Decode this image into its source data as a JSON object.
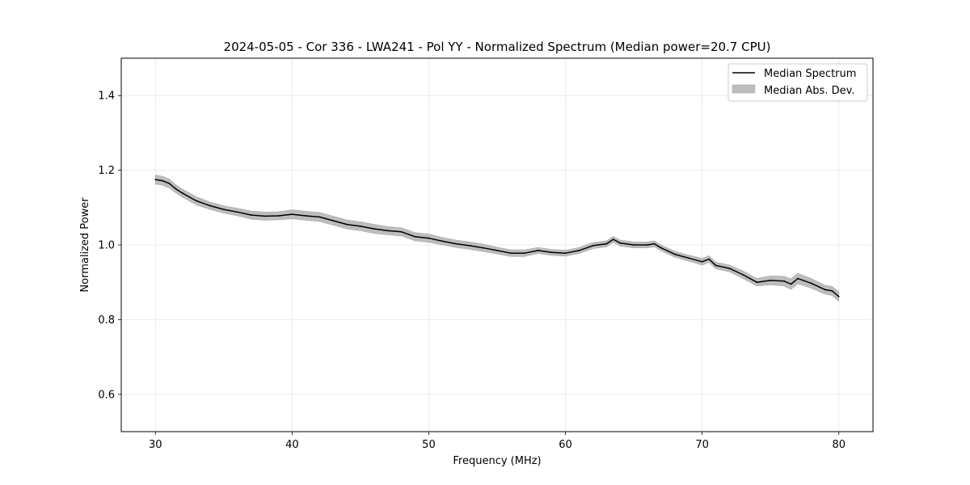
{
  "chart_data": {
    "type": "line",
    "title": "2024-05-05 - Cor 336 - LWA241 - Pol YY - Normalized Spectrum (Median power=20.7 CPU)",
    "xlabel": "Frequency (MHz)",
    "ylabel": "Normalized Power",
    "xlim": [
      27.5,
      82.5
    ],
    "ylim": [
      0.5,
      1.5
    ],
    "xticks": [
      30,
      40,
      50,
      60,
      70,
      80
    ],
    "yticks": [
      0.6,
      0.8,
      1.0,
      1.2,
      1.4
    ],
    "xtick_labels": [
      "30",
      "40",
      "50",
      "60",
      "70",
      "80"
    ],
    "ytick_labels": [
      "0.6",
      "0.8",
      "1.0",
      "1.2",
      "1.4"
    ],
    "grid": true,
    "legend": {
      "position": "top-right",
      "entries": [
        {
          "label": "Median Spectrum",
          "kind": "line",
          "color": "#000000"
        },
        {
          "label": "Median Abs. Dev.",
          "kind": "band",
          "color": "#bdbdbd"
        }
      ]
    },
    "series": [
      {
        "name": "Median Spectrum",
        "x": [
          30,
          30.5,
          31,
          31.5,
          32,
          32.5,
          33,
          34,
          35,
          36,
          37,
          38,
          39,
          40,
          41,
          42,
          43,
          44,
          45,
          46,
          47,
          48,
          49,
          50,
          51,
          52,
          53,
          54,
          55,
          56,
          57,
          58,
          59,
          60,
          61,
          62,
          63,
          63.5,
          64,
          65,
          66,
          66.5,
          67,
          68,
          69,
          70,
          70.5,
          71,
          72,
          73,
          74,
          75,
          76,
          76.5,
          77,
          78,
          79,
          79.5,
          80
        ],
        "values": [
          1.175,
          1.172,
          1.165,
          1.15,
          1.138,
          1.128,
          1.118,
          1.105,
          1.095,
          1.088,
          1.08,
          1.077,
          1.078,
          1.082,
          1.078,
          1.075,
          1.065,
          1.055,
          1.05,
          1.043,
          1.038,
          1.035,
          1.022,
          1.018,
          1.01,
          1.003,
          0.998,
          0.992,
          0.985,
          0.978,
          0.978,
          0.985,
          0.98,
          0.978,
          0.985,
          0.998,
          1.003,
          1.015,
          1.005,
          1.0,
          1.0,
          1.003,
          0.992,
          0.975,
          0.965,
          0.955,
          0.962,
          0.945,
          0.937,
          0.92,
          0.9,
          0.905,
          0.903,
          0.895,
          0.91,
          0.897,
          0.88,
          0.877,
          0.862
        ]
      }
    ],
    "mad_band": {
      "name": "Median Abs. Dev.",
      "half_width": [
        0.012,
        0.012,
        0.012,
        0.011,
        0.011,
        0.011,
        0.011,
        0.01,
        0.01,
        0.01,
        0.011,
        0.011,
        0.011,
        0.012,
        0.012,
        0.012,
        0.012,
        0.012,
        0.012,
        0.012,
        0.011,
        0.011,
        0.011,
        0.011,
        0.01,
        0.01,
        0.01,
        0.01,
        0.009,
        0.009,
        0.009,
        0.008,
        0.008,
        0.008,
        0.008,
        0.008,
        0.008,
        0.008,
        0.008,
        0.008,
        0.008,
        0.008,
        0.008,
        0.008,
        0.008,
        0.009,
        0.009,
        0.009,
        0.009,
        0.01,
        0.01,
        0.012,
        0.013,
        0.014,
        0.014,
        0.013,
        0.012,
        0.012,
        0.013
      ]
    }
  }
}
